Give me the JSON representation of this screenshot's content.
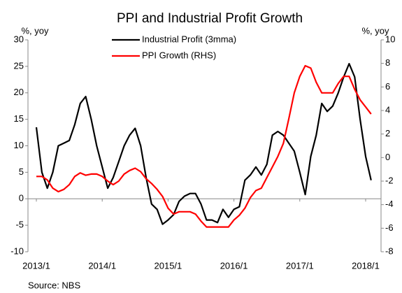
{
  "chart_data": {
    "type": "line",
    "title": "PPI  and   Industrial Profit Growth",
    "ylabel": "%, yoy",
    "y2label": "%, yoy",
    "source": "Source:  NBS",
    "x": [
      "2013/1",
      null,
      null,
      null,
      null,
      null,
      null,
      null,
      null,
      null,
      null,
      null,
      "2014/1",
      null,
      null,
      null,
      null,
      null,
      null,
      null,
      null,
      null,
      null,
      null,
      "2015/1",
      null,
      null,
      null,
      null,
      null,
      null,
      null,
      null,
      null,
      null,
      null,
      "2016/1",
      null,
      null,
      null,
      null,
      null,
      null,
      null,
      null,
      null,
      null,
      null,
      "2017/1",
      null,
      null,
      null,
      null,
      null,
      null,
      null,
      null,
      null,
      null,
      null,
      "2018/1",
      null
    ],
    "series": [
      {
        "name": "Industrial Profit (3mma)",
        "color": "#000000",
        "axis": "y",
        "values": [
          13.5,
          5,
          2,
          5,
          10,
          10.5,
          11,
          14,
          18,
          19.3,
          15,
          10,
          6,
          2,
          4,
          7,
          10,
          12,
          13.3,
          10,
          4,
          -1,
          -2,
          -4.8,
          -4,
          -3,
          -0.5,
          0.5,
          1,
          1,
          -1,
          -4,
          -4,
          -4.5,
          -2,
          -3.5,
          -2,
          -1.5,
          3.5,
          4.5,
          6,
          4.5,
          6.5,
          12,
          12.7,
          12,
          10.5,
          9,
          5,
          0.8,
          8,
          12,
          18,
          16.5,
          17.5,
          20,
          23,
          25.5,
          23,
          15,
          8,
          3.5
        ]
      },
      {
        "name": "PPI Growth (RHS)",
        "color": "#ff0000",
        "axis": "y2",
        "values": [
          -1.6,
          -1.6,
          -1.9,
          -2.6,
          -2.9,
          -2.7,
          -2.3,
          -1.6,
          -1.3,
          -1.5,
          -1.4,
          -1.4,
          -1.6,
          -2.0,
          -2.3,
          -2.0,
          -1.4,
          -1.1,
          -0.9,
          -1.2,
          -1.8,
          -2.2,
          -2.7,
          -3.3,
          -4.3,
          -4.8,
          -4.6,
          -4.6,
          -4.6,
          -4.8,
          -5.4,
          -5.9,
          -5.9,
          -5.9,
          -5.9,
          -5.9,
          -5.3,
          -4.9,
          -4.3,
          -3.4,
          -2.8,
          -2.6,
          -1.7,
          -0.8,
          0.1,
          1.2,
          3.3,
          5.5,
          6.9,
          7.8,
          7.6,
          6.4,
          5.5,
          5.5,
          5.5,
          6.3,
          6.9,
          6.9,
          5.8,
          4.9,
          4.3,
          3.7
        ]
      }
    ],
    "ylim": [
      -10,
      30
    ],
    "yticks": [
      -10,
      -5,
      0,
      5,
      10,
      15,
      20,
      25,
      30
    ],
    "y2lim": [
      -8,
      10
    ],
    "y2ticks": [
      -8,
      -6,
      -4,
      -2,
      0,
      2,
      4,
      6,
      8,
      10
    ]
  }
}
